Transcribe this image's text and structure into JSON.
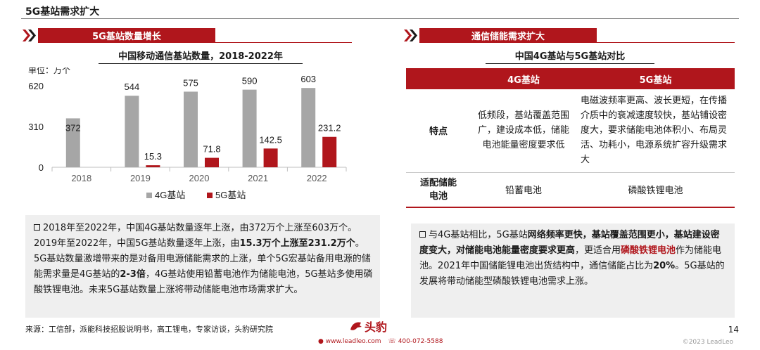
{
  "page": {
    "title": "5G基站需求扩大",
    "page_number": "14",
    "copyright": "©2023 LeadLeo",
    "source": "来源：工信部，派能科技招股说明书，高工锂电，专家访谈，头豹研究院"
  },
  "footer": {
    "logo_cn": "头豹",
    "logo_en": "LeadLeo",
    "website": "www.leadleo.com",
    "phone": "400-072-5588"
  },
  "left_section": {
    "banner": "5G基站数量增长",
    "chart_title": "中国移动通信基站数量，2018-2022年",
    "unit_label": "单位：万个",
    "text_lines": [
      "2018年至2022年，中国4G基站数量逐年上涨，由372万个上涨至603万个。2019年至2022年，中国5G基站数量逐年上涨，由",
      "15.3万个上涨至231.2万个",
      "。5G基站数量激增带来的是对备用电源储能需求的上涨，单个5G宏基站备用电源的储能需求量是4G基站的",
      "2-3倍",
      "，4G基站使用铅蓄电池作为储能电池，5G基站多使用磷酸铁锂电池。未来5G基站数量上涨将带动储能电池市场需求扩大。"
    ]
  },
  "right_section": {
    "banner": "通信储能需求扩大",
    "table_title": "中国4G基站与5G基站对比",
    "table": {
      "headers": [
        "",
        "4G基站",
        "5G基站"
      ],
      "rows": [
        {
          "label": "特点",
          "col4g": "低频段，基站覆盖范围广，建设成本低，储能电池能量密度要求低",
          "col5g": "电磁波频率更高、波长更短，在传播介质中的衰减速度较快，基站铺设密度大，要求储能电池体积小、布局灵活、功耗小，电源系统扩容升级需求大"
        },
        {
          "label": "适配储能电池",
          "col4g": "铅蓄电池",
          "col5g": "磷酸铁锂电池"
        }
      ]
    },
    "text_parts": [
      "与4G基站相比，5G基站",
      "网络频率更快，基站覆盖范围更小，基站建设密度变大，对储能电池能量密度要求更高",
      "，更适合用",
      "磷酸铁锂电池",
      "作为储能电池。2021年中国储能锂电池出货结构中，通信储能占比为",
      "20%",
      "。5G基站的发展将带动储能型磷酸铁锂电池需求上涨。"
    ]
  },
  "colors": {
    "accent_red": "#b0161c",
    "bar_4g": "#a6a6a6",
    "bar_5g": "#b0161c",
    "box_bg": "#efefef"
  },
  "chart_data": {
    "type": "bar",
    "title": "中国移动通信基站数量，2018-2022年",
    "unit": "单位：万个",
    "categories": [
      "2018",
      "2019",
      "2020",
      "2021",
      "2022"
    ],
    "series": [
      {
        "name": "4G基站",
        "values": [
          372,
          544,
          575,
          590,
          603
        ],
        "labels": [
          "372",
          "544",
          "575",
          "590",
          "603"
        ]
      },
      {
        "name": "5G基站",
        "values": [
          0,
          15.3,
          71.8,
          142.5,
          231.2
        ],
        "labels": [
          "",
          "15.3",
          "71.8",
          "142.5",
          "231.2"
        ]
      }
    ],
    "yticks": [
      "0",
      "310",
      "620"
    ],
    "ylim": [
      0,
      620
    ],
    "legend": "bottom",
    "grid": false
  }
}
